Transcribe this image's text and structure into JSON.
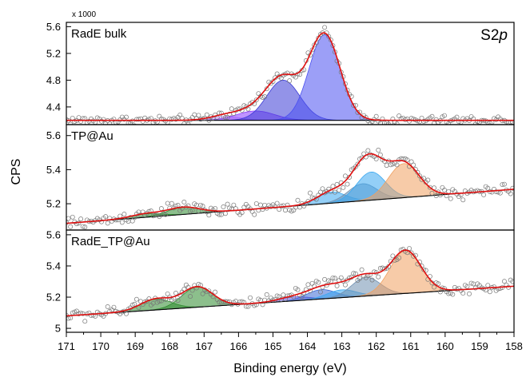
{
  "chart_data": {
    "type": "line",
    "xlabel": "Binding energy (eV)",
    "ylabel": "CPS",
    "y_multiplier_label": "x 1000",
    "xlim": [
      171,
      158
    ],
    "x_ticks": [
      171,
      170,
      169,
      168,
      167,
      166,
      165,
      164,
      163,
      162,
      161,
      160,
      159,
      158
    ],
    "grid": false,
    "legend": "none",
    "panels": [
      {
        "label": "RadE bulk",
        "region_label": "S2p",
        "ylim": [
          4.16,
          5.64
        ],
        "y_ticks": [
          4.4,
          4.8,
          5.2,
          5.6
        ],
        "y_tick_labels": [
          "4.4",
          "4.8",
          "5.2",
          "5.6"
        ],
        "baseline": [
          [
            171,
            4.2
          ],
          [
            158,
            4.2
          ]
        ],
        "noise": 0.035,
        "components": [
          {
            "center": 166.4,
            "amplitude": 0.06,
            "sigma": 0.45,
            "color": "#c9a0ff"
          },
          {
            "center": 165.5,
            "amplitude": 0.14,
            "sigma": 0.55,
            "color": "#8a3dff"
          },
          {
            "center": 164.7,
            "amplitude": 0.6,
            "sigma": 0.48,
            "color": "#3a3ad6"
          },
          {
            "center": 163.5,
            "amplitude": 1.28,
            "sigma": 0.45,
            "color": "#4a50f0"
          }
        ]
      },
      {
        "label": "TP@Au",
        "ylim": [
          5.055,
          5.655
        ],
        "y_ticks": [
          5.2,
          5.4,
          5.6
        ],
        "y_tick_labels": [
          "5.2",
          "5.4",
          "5.6"
        ],
        "baseline": [
          [
            171,
            5.085
          ],
          [
            158,
            5.285
          ]
        ],
        "noise": 0.018,
        "components": [
          {
            "center": 168.7,
            "amplitude": 0.02,
            "sigma": 0.45,
            "color": "#2e8a2e"
          },
          {
            "center": 167.6,
            "amplitude": 0.042,
            "sigma": 0.48,
            "color": "#2e8a2e"
          },
          {
            "center": 163.3,
            "amplitude": 0.065,
            "sigma": 0.42,
            "color": "#3aa8f0"
          },
          {
            "center": 162.4,
            "amplitude": 0.1,
            "sigma": 0.42,
            "color": "#6f8fb0"
          },
          {
            "center": 162.15,
            "amplitude": 0.165,
            "sigma": 0.42,
            "color": "#3aa8f0"
          },
          {
            "center": 161.2,
            "amplitude": 0.2,
            "sigma": 0.45,
            "color": "#f0a060"
          }
        ]
      },
      {
        "label": "RadE_TP@Au",
        "ylim": [
          4.985,
          5.62
        ],
        "y_ticks": [
          5.0,
          5.2,
          5.4,
          5.6
        ],
        "y_tick_labels": [
          "5",
          "5.2",
          "5.4",
          "5.6"
        ],
        "baseline": [
          [
            171,
            5.08
          ],
          [
            158,
            5.27
          ]
        ],
        "noise": 0.02,
        "components": [
          {
            "center": 168.4,
            "amplitude": 0.07,
            "sigma": 0.45,
            "color": "#2e8a2e"
          },
          {
            "center": 167.2,
            "amplitude": 0.13,
            "sigma": 0.45,
            "color": "#2e8a2e"
          },
          {
            "center": 164.4,
            "amplitude": 0.025,
            "sigma": 0.45,
            "color": "#6a50e0"
          },
          {
            "center": 163.6,
            "amplitude": 0.06,
            "sigma": 0.42,
            "color": "#3a6ad6"
          },
          {
            "center": 163.0,
            "amplitude": 0.05,
            "sigma": 0.42,
            "color": "#3aa8f0"
          },
          {
            "center": 162.3,
            "amplitude": 0.12,
            "sigma": 0.42,
            "color": "#6f8fb0"
          },
          {
            "center": 161.15,
            "amplitude": 0.275,
            "sigma": 0.45,
            "color": "#f0a060"
          }
        ]
      }
    ]
  }
}
